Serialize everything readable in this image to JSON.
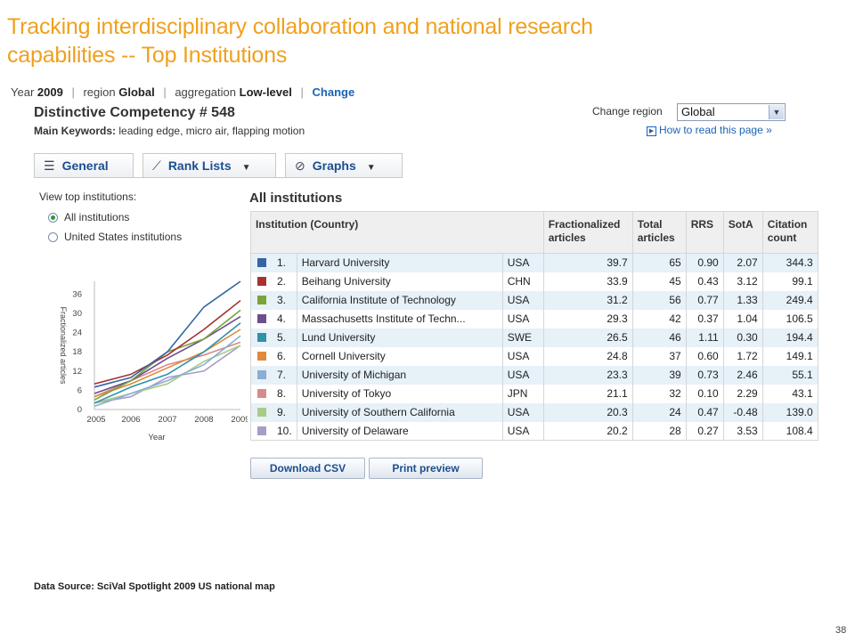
{
  "slide": {
    "title_line1": "Tracking interdisciplinary collaboration and national research",
    "title_line2": "capabilities  -- Top Institutions",
    "source": "Data Source: SciVal Spotlight 2009 US national map",
    "page_number": "38"
  },
  "context_bar": {
    "year_label": "Year",
    "year_value": "2009",
    "region_label": "region",
    "region_value": "Global",
    "aggregation_label": "aggregation",
    "aggregation_value": "Low-level",
    "change_link": "Change"
  },
  "competency": {
    "title": "Distinctive Competency # 548",
    "keywords_label": "Main Keywords:",
    "keywords_value": "leading edge, micro air, flapping motion"
  },
  "region_control": {
    "label": "Change region",
    "selected": "Global",
    "help_link": "How to read this page »"
  },
  "tabs": [
    {
      "label": "General",
      "icon": "list-icon"
    },
    {
      "label": "Rank Lists",
      "icon": "line-chart-icon"
    },
    {
      "label": "Graphs",
      "icon": "clock-icon"
    }
  ],
  "view": {
    "heading": "View top institutions:",
    "options": [
      {
        "label": "All institutions",
        "selected": true
      },
      {
        "label": "United States institutions",
        "selected": false
      }
    ]
  },
  "table": {
    "heading": "All institutions",
    "headers": [
      "Institution (Country)",
      "Fractionalized articles",
      "Total articles",
      "RRS",
      "SotA",
      "Citation count"
    ],
    "rows": [
      {
        "rank": "1.",
        "name": "Harvard University",
        "country": "USA",
        "frac": "39.7",
        "total": "65",
        "rrs": "0.90",
        "sota": "2.07",
        "cites": "344.3",
        "color": "#3465a4"
      },
      {
        "rank": "2.",
        "name": "Beihang University",
        "country": "CHN",
        "frac": "33.9",
        "total": "45",
        "rrs": "0.43",
        "sota": "3.12",
        "cites": "99.1",
        "color": "#a83232"
      },
      {
        "rank": "3.",
        "name": "California Institute of Technology",
        "country": "USA",
        "frac": "31.2",
        "total": "56",
        "rrs": "0.77",
        "sota": "1.33",
        "cites": "249.4",
        "color": "#7aa33a"
      },
      {
        "rank": "4.",
        "name": "Massachusetts Institute of Techn...",
        "country": "USA",
        "frac": "29.3",
        "total": "42",
        "rrs": "0.37",
        "sota": "1.04",
        "cites": "106.5",
        "color": "#6a4f8f"
      },
      {
        "rank": "5.",
        "name": "Lund University",
        "country": "SWE",
        "frac": "26.5",
        "total": "46",
        "rrs": "1.11",
        "sota": "0.30",
        "cites": "194.4",
        "color": "#2f93a8"
      },
      {
        "rank": "6.",
        "name": "Cornell University",
        "country": "USA",
        "frac": "24.8",
        "total": "37",
        "rrs": "0.60",
        "sota": "1.72",
        "cites": "149.1",
        "color": "#e08a3c"
      },
      {
        "rank": "7.",
        "name": "University of Michigan",
        "country": "USA",
        "frac": "23.3",
        "total": "39",
        "rrs": "0.73",
        "sota": "2.46",
        "cites": "55.1",
        "color": "#8aaed6"
      },
      {
        "rank": "8.",
        "name": "University of Tokyo",
        "country": "JPN",
        "frac": "21.1",
        "total": "32",
        "rrs": "0.10",
        "sota": "2.29",
        "cites": "43.1",
        "color": "#d88a8a"
      },
      {
        "rank": "9.",
        "name": "University of Southern California",
        "country": "USA",
        "frac": "20.3",
        "total": "24",
        "rrs": "0.47",
        "sota": "-0.48",
        "cites": "139.0",
        "color": "#a9cc84"
      },
      {
        "rank": "10.",
        "name": "University of Delaware",
        "country": "USA",
        "frac": "20.2",
        "total": "28",
        "rrs": "0.27",
        "sota": "3.53",
        "cites": "108.4",
        "color": "#a89cc8"
      }
    ]
  },
  "buttons": {
    "download": "Download CSV",
    "print": "Print preview"
  },
  "chart_data": {
    "type": "line",
    "xlabel": "Year",
    "ylabel": "Fractionalized articles",
    "x": [
      "2005",
      "2006",
      "2007",
      "2008",
      "2009"
    ],
    "yticks": [
      0,
      6,
      12,
      18,
      24,
      30,
      36
    ],
    "ylim": [
      0,
      40
    ],
    "grid": false,
    "series": [
      {
        "color": "#3465a4",
        "values": [
          7,
          10,
          18,
          32,
          40
        ]
      },
      {
        "color": "#a83232",
        "values": [
          8,
          11,
          17,
          25,
          34
        ]
      },
      {
        "color": "#7aa33a",
        "values": [
          3,
          9,
          18,
          22,
          31
        ]
      },
      {
        "color": "#6a4f8f",
        "values": [
          5,
          9,
          16,
          22,
          29
        ]
      },
      {
        "color": "#2f93a8",
        "values": [
          2,
          7,
          11,
          18,
          27
        ]
      },
      {
        "color": "#e08a3c",
        "values": [
          4,
          8,
          13,
          18,
          25
        ]
      },
      {
        "color": "#8aaed6",
        "values": [
          1,
          5,
          9,
          14,
          23
        ]
      },
      {
        "color": "#d88a8a",
        "values": [
          4,
          9,
          14,
          17,
          21
        ]
      },
      {
        "color": "#a9cc84",
        "values": [
          2,
          5,
          8,
          15,
          20
        ]
      },
      {
        "color": "#a89cc8",
        "values": [
          2,
          4,
          10,
          12,
          20
        ]
      }
    ]
  }
}
